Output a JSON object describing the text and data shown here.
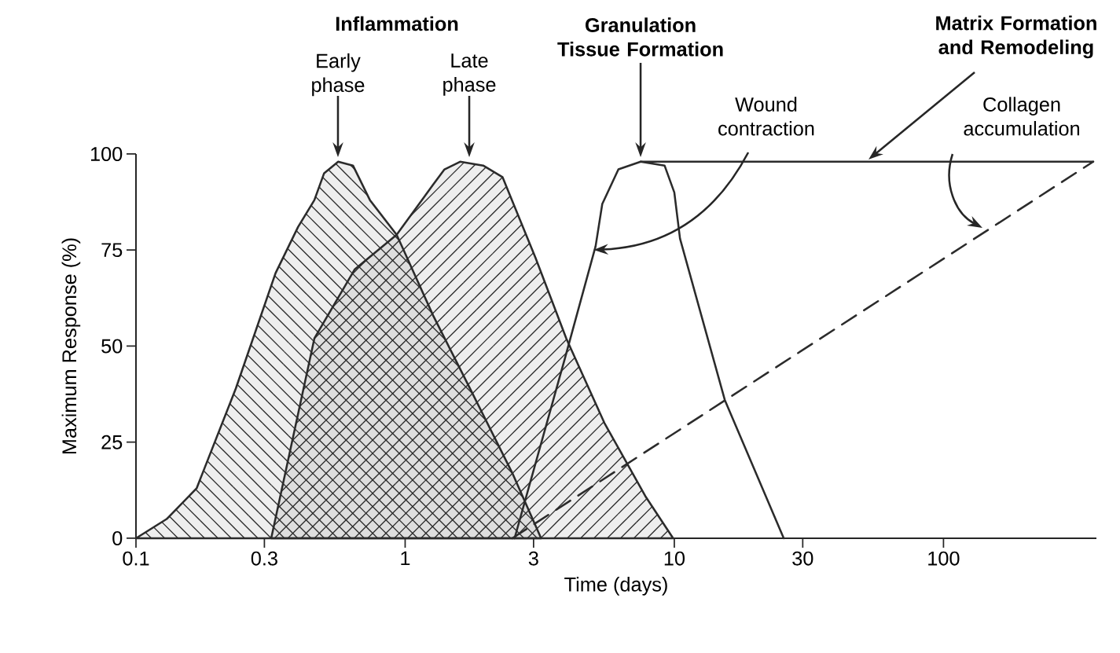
{
  "chart_data": {
    "type": "line",
    "xlabel": "Time (days)",
    "ylabel": "Maximum Response (%)",
    "log": "x",
    "xlim": [
      0.1,
      370
    ],
    "ylim": [
      0,
      100
    ],
    "xticks": [
      0.1,
      0.3,
      1,
      3,
      10,
      30,
      100
    ],
    "yticks": [
      0,
      25,
      50,
      75,
      100
    ],
    "series": [
      {
        "type": "area",
        "color": "#2b2b2b",
        "x": [
          0.1,
          0.13,
          0.168,
          0.235,
          0.33,
          0.4,
          0.46,
          0.5,
          0.564,
          0.64,
          0.74,
          0.93,
          1.27,
          1.77,
          2.5,
          3.2
        ],
        "values": [
          0,
          5,
          13,
          39,
          69,
          81,
          88,
          95,
          98,
          97,
          88,
          79,
          58,
          38,
          17,
          0
        ]
      },
      {
        "type": "area",
        "color": "#2b2b2b",
        "x": [
          0.318,
          0.46,
          0.65,
          0.93,
          1.27,
          1.4,
          1.6,
          1.95,
          2.3,
          3.05,
          3.97,
          5.5,
          7.8,
          9.9
        ],
        "values": [
          0,
          52,
          70,
          79,
          92,
          96,
          98,
          97,
          94,
          73,
          52,
          30,
          11,
          0
        ]
      },
      {
        "type": "line",
        "color": "#2b2b2b",
        "line_style": "solid",
        "x": [
          2.55,
          3.93,
          5.1,
          5.4,
          6.2,
          7.5,
          9.2,
          10,
          10.5,
          15.4,
          25.5
        ],
        "values": [
          0,
          47,
          76,
          87,
          96,
          98,
          97,
          90,
          78,
          36,
          0
        ]
      },
      {
        "type": "line",
        "color": "#2b2b2b",
        "line_style": "solid",
        "x": [
          7.5,
          360
        ],
        "values": [
          98,
          98
        ]
      },
      {
        "type": "line",
        "color": "#2b2b2b",
        "line_style": "dashed",
        "x": [
          2.5,
          360
        ],
        "values": [
          0,
          98
        ]
      }
    ],
    "annotations": [
      "Inflammation",
      "Early phase",
      "Late phase",
      "Granulation Tissue Formation",
      "Matrix Formation and Remodeling",
      "Wound contraction",
      "Collagen accumulation"
    ]
  }
}
